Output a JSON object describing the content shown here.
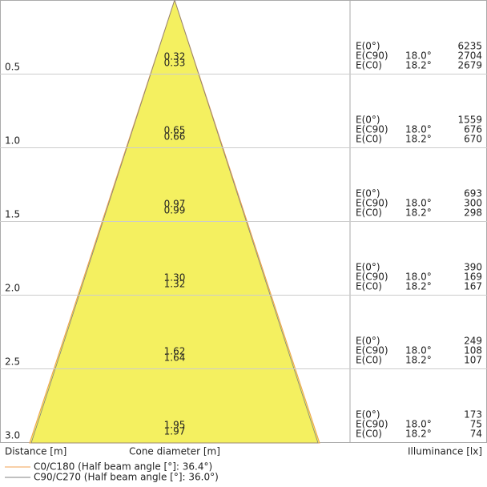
{
  "rows": [
    {
      "distance": "0.5",
      "diameters": [
        "0.32",
        "0.33"
      ],
      "illuminance": [
        {
          "label": "E(0°)",
          "angle": null,
          "value": "6235"
        },
        {
          "label": "E(C90)",
          "angle": "18.0°",
          "value": "2704"
        },
        {
          "label": "E(C0)",
          "angle": "18.2°",
          "value": "2679"
        }
      ]
    },
    {
      "distance": "1.0",
      "diameters": [
        "0.65",
        "0.66"
      ],
      "illuminance": [
        {
          "label": "E(0°)",
          "angle": null,
          "value": "1559"
        },
        {
          "label": "E(C90)",
          "angle": "18.0°",
          "value": "676"
        },
        {
          "label": "E(C0)",
          "angle": "18.2°",
          "value": "670"
        }
      ]
    },
    {
      "distance": "1.5",
      "diameters": [
        "0.97",
        "0.99"
      ],
      "illuminance": [
        {
          "label": "E(0°)",
          "angle": null,
          "value": "693"
        },
        {
          "label": "E(C90)",
          "angle": "18.0°",
          "value": "300"
        },
        {
          "label": "E(C0)",
          "angle": "18.2°",
          "value": "298"
        }
      ]
    },
    {
      "distance": "2.0",
      "diameters": [
        "1.30",
        "1.32"
      ],
      "illuminance": [
        {
          "label": "E(0°)",
          "angle": null,
          "value": "390"
        },
        {
          "label": "E(C90)",
          "angle": "18.0°",
          "value": "169"
        },
        {
          "label": "E(C0)",
          "angle": "18.2°",
          "value": "167"
        }
      ]
    },
    {
      "distance": "2.5",
      "diameters": [
        "1.62",
        "1.64"
      ],
      "illuminance": [
        {
          "label": "E(0°)",
          "angle": null,
          "value": "249"
        },
        {
          "label": "E(C90)",
          "angle": "18.0°",
          "value": "108"
        },
        {
          "label": "E(C0)",
          "angle": "18.2°",
          "value": "107"
        }
      ]
    },
    {
      "distance": "3.0",
      "diameters": [
        "1.95",
        "1.97"
      ],
      "illuminance": [
        {
          "label": "E(0°)",
          "angle": null,
          "value": "173"
        },
        {
          "label": "E(C90)",
          "angle": "18.0°",
          "value": "75"
        },
        {
          "label": "E(C0)",
          "angle": "18.2°",
          "value": "74"
        }
      ]
    }
  ],
  "footer": {
    "distance_label": "Distance [m]",
    "diameter_label": "Cone diameter [m]",
    "illuminance_label": "Illuminance [lx]"
  },
  "legend": [
    {
      "text": "C0/C180 (Half beam angle [°]: 36.4°)",
      "color": "#f0a050"
    },
    {
      "text": "C90/C270 (Half beam angle [°]: 36.0°)",
      "color": "#808080"
    }
  ]
}
